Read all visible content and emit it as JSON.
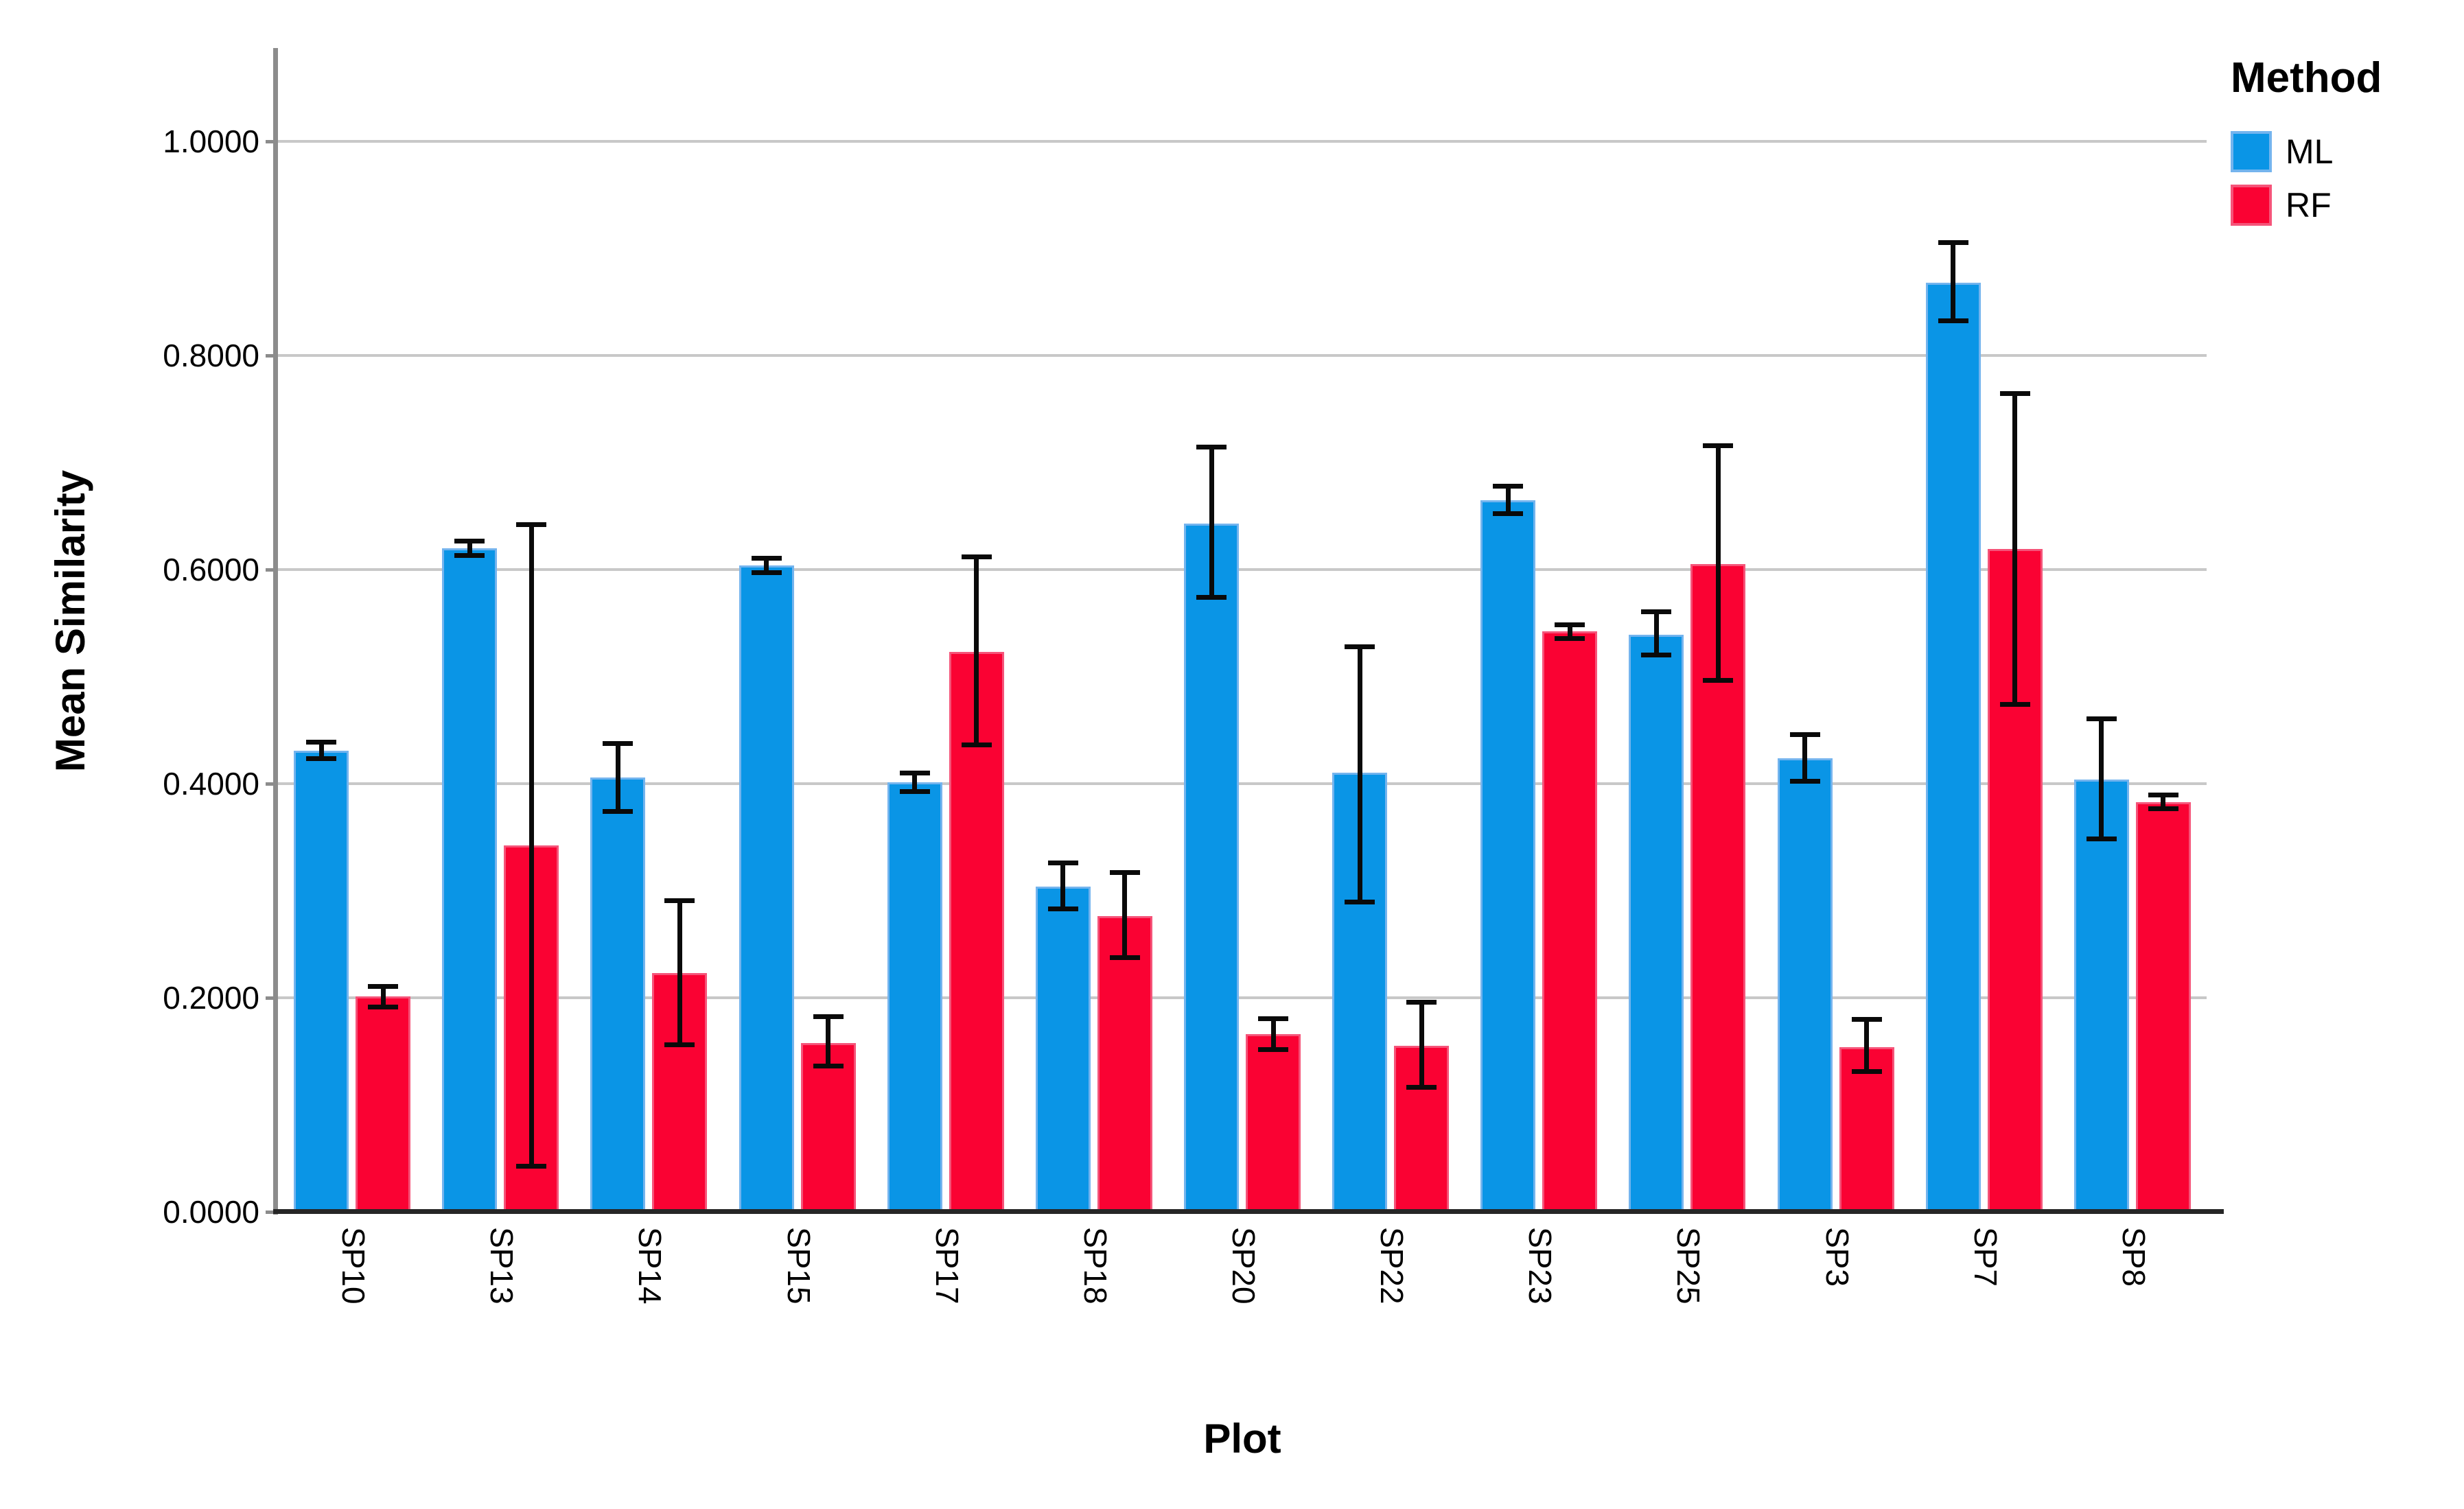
{
  "chart_data": {
    "type": "bar",
    "subtype": "clustered-vertical-with-error-bars",
    "title": "",
    "xlabel": "Plot",
    "ylabel": "Mean Similarity",
    "legend_title": "Method",
    "legend_position": "top-right",
    "grid": "horizontal",
    "ylim": [
      0,
      1.09
    ],
    "y_ticks": [
      {
        "value": 0.0,
        "label": "0.0000"
      },
      {
        "value": 0.2,
        "label": "0.2000"
      },
      {
        "value": 0.4,
        "label": "0.4000"
      },
      {
        "value": 0.6,
        "label": "0.6000"
      },
      {
        "value": 0.8,
        "label": "0.8000"
      },
      {
        "value": 1.0,
        "label": "1.0000"
      }
    ],
    "categories": [
      "SP10",
      "SP13",
      "SP14",
      "SP15",
      "SP17",
      "SP18",
      "SP20",
      "SP22",
      "SP23",
      "SP25",
      "SP3",
      "SP7",
      "SP8"
    ],
    "series": [
      {
        "name": "ML",
        "color": "#0a95e6",
        "edge_color": "#74b4ee",
        "values": [
          0.431,
          0.62,
          0.406,
          0.604,
          0.401,
          0.304,
          0.643,
          0.41,
          0.665,
          0.539,
          0.424,
          0.868,
          0.404
        ],
        "err_low": [
          0.423,
          0.613,
          0.374,
          0.597,
          0.392,
          0.283,
          0.574,
          0.289,
          0.652,
          0.52,
          0.402,
          0.832,
          0.348
        ],
        "err_high": [
          0.439,
          0.627,
          0.438,
          0.611,
          0.41,
          0.326,
          0.715,
          0.528,
          0.678,
          0.561,
          0.446,
          0.906,
          0.461
        ]
      },
      {
        "name": "RF",
        "color": "#fa0233",
        "edge_color": "#f55479",
        "values": [
          0.201,
          0.342,
          0.223,
          0.158,
          0.523,
          0.276,
          0.166,
          0.155,
          0.542,
          0.605,
          0.154,
          0.619,
          0.383
        ],
        "err_low": [
          0.191,
          0.042,
          0.156,
          0.136,
          0.436,
          0.237,
          0.151,
          0.116,
          0.535,
          0.496,
          0.131,
          0.474,
          0.376
        ],
        "err_high": [
          0.211,
          0.642,
          0.291,
          0.183,
          0.612,
          0.317,
          0.181,
          0.196,
          0.549,
          0.716,
          0.18,
          0.765,
          0.39
        ]
      }
    ],
    "error_bar_color": "#0a0a0a",
    "gridline_color": "#c8c8c8",
    "y_axis_color": "#8c8c8c",
    "x_axis_color": "#262626"
  }
}
